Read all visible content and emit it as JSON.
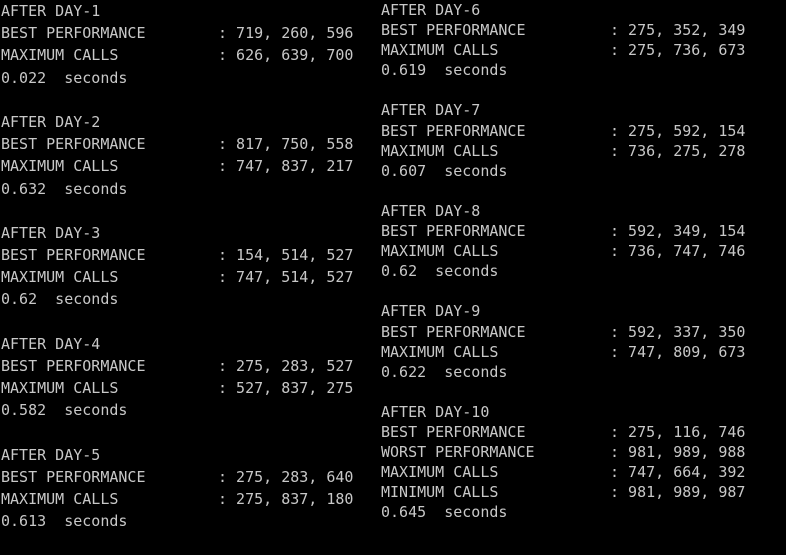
{
  "theme": {
    "background": "#000000",
    "text": "#c8c8c8"
  },
  "left_blocks": [
    {
      "title": "AFTER DAY-1",
      "rows": [
        {
          "label": "BEST PERFORMANCE",
          "value": ": 719, 260, 596"
        },
        {
          "label": "MAXIMUM CALLS",
          "value": ": 626, 639, 700"
        }
      ],
      "time": "0.022  seconds"
    },
    {
      "title": "AFTER DAY-2",
      "rows": [
        {
          "label": "BEST PERFORMANCE",
          "value": ": 817, 750, 558"
        },
        {
          "label": "MAXIMUM CALLS",
          "value": ": 747, 837, 217"
        }
      ],
      "time": "0.632  seconds"
    },
    {
      "title": "AFTER DAY-3",
      "rows": [
        {
          "label": "BEST PERFORMANCE",
          "value": ": 154, 514, 527"
        },
        {
          "label": "MAXIMUM CALLS",
          "value": ": 747, 514, 527"
        }
      ],
      "time": "0.62  seconds"
    },
    {
      "title": "AFTER DAY-4",
      "rows": [
        {
          "label": "BEST PERFORMANCE",
          "value": ": 275, 283, 527"
        },
        {
          "label": "MAXIMUM CALLS",
          "value": ": 527, 837, 275"
        }
      ],
      "time": "0.582  seconds"
    },
    {
      "title": "AFTER DAY-5",
      "rows": [
        {
          "label": "BEST PERFORMANCE",
          "value": ": 275, 283, 640"
        },
        {
          "label": "MAXIMUM CALLS",
          "value": ": 275, 837, 180"
        }
      ],
      "time": "0.613  seconds"
    }
  ],
  "right_blocks": [
    {
      "title": "AFTER DAY-6",
      "rows": [
        {
          "label": "BEST PERFORMANCE",
          "value": ": 275, 352, 349"
        },
        {
          "label": "MAXIMUM CALLS",
          "value": ": 275, 736, 673"
        }
      ],
      "time": "0.619  seconds"
    },
    {
      "title": "AFTER DAY-7",
      "rows": [
        {
          "label": "BEST PERFORMANCE",
          "value": ": 275, 592, 154"
        },
        {
          "label": "MAXIMUM CALLS",
          "value": ": 736, 275, 278"
        }
      ],
      "time": "0.607  seconds"
    },
    {
      "title": "AFTER DAY-8",
      "rows": [
        {
          "label": "BEST PERFORMANCE",
          "value": ": 592, 349, 154"
        },
        {
          "label": "MAXIMUM CALLS",
          "value": ": 736, 747, 746"
        }
      ],
      "time": "0.62  seconds"
    },
    {
      "title": "AFTER DAY-9",
      "rows": [
        {
          "label": "BEST PERFORMANCE",
          "value": ": 592, 337, 350"
        },
        {
          "label": "MAXIMUM CALLS",
          "value": ": 747, 809, 673"
        }
      ],
      "time": "0.622  seconds"
    },
    {
      "title": "AFTER DAY-10",
      "rows": [
        {
          "label": "BEST PERFORMANCE",
          "value": ": 275, 116, 746"
        },
        {
          "label": "WORST PERFORMANCE",
          "value": ": 981, 989, 988"
        },
        {
          "label": "MAXIMUM CALLS",
          "value": ": 747, 664, 392"
        },
        {
          "label": "MINIMUM CALLS",
          "value": ": 981, 989, 987"
        }
      ],
      "time": "0.645  seconds"
    }
  ]
}
